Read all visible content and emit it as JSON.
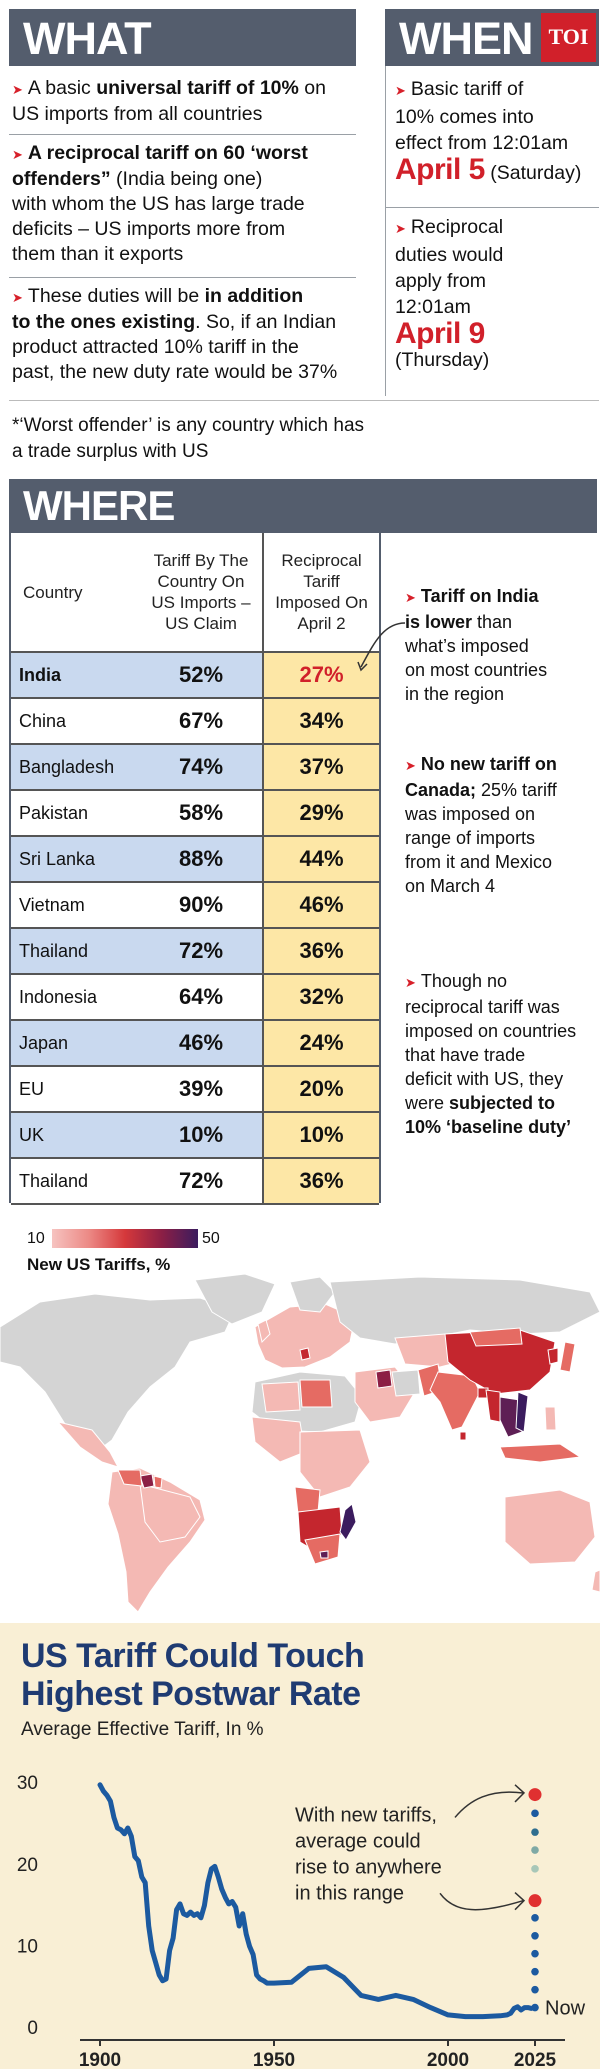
{
  "what": {
    "heading": "WHAT",
    "items": [
      {
        "lines": [
          [
            {
              "t": "A basic "
            },
            {
              "t": "universal tariff of 10%",
              "b": true
            },
            {
              "t": " on"
            }
          ],
          [
            {
              "t": "US imports from all countries"
            }
          ]
        ]
      },
      {
        "lines": [
          [
            {
              "t": "A reciprocal tariff on 60 ‘worst",
              "b": true
            }
          ],
          [
            {
              "t": "offenders”",
              "b": true
            },
            {
              "t": " (India being one)"
            }
          ],
          [
            {
              "t": "with whom the US has large trade"
            }
          ],
          [
            {
              "t": "deficits – US imports more from"
            }
          ],
          [
            {
              "t": "them than it exports"
            }
          ]
        ]
      },
      {
        "lines": [
          [
            {
              "t": "These duties will be "
            },
            {
              "t": "in addition",
              "b": true
            }
          ],
          [
            {
              "t": "to the ones existing",
              "b": true
            },
            {
              "t": ". So, if an Indian"
            }
          ],
          [
            {
              "t": "product attracted 10% tariff in the"
            }
          ],
          [
            {
              "t": "past, the new duty rate would be 37%"
            }
          ]
        ]
      }
    ],
    "footnote_lines": [
      "*‘Worst offender’ is any country which has",
      "a trade surplus with US"
    ]
  },
  "when": {
    "heading": "WHEN",
    "badge": "TOI",
    "item1_lines": [
      "Basic tariff of",
      "10% comes into",
      "effect from 12:01am"
    ],
    "item1_date": "April 5",
    "item1_day": "(Saturday)",
    "item2_lines": [
      "Reciprocal",
      "duties would",
      "apply from",
      "12:01am"
    ],
    "item2_date": "April 9",
    "item2_day": "(Thursday)"
  },
  "where": {
    "heading": "WHERE",
    "columns": [
      "Country",
      "Tariff By The Country On US Imports – US Claim",
      "Reciprocal Tariff Imposed On April 2"
    ],
    "rows": [
      {
        "country": "India",
        "claim": "52%",
        "reciprocal": "27%",
        "highlight": true
      },
      {
        "country": "China",
        "claim": "67%",
        "reciprocal": "34%"
      },
      {
        "country": "Bangladesh",
        "claim": "74%",
        "reciprocal": "37%"
      },
      {
        "country": "Pakistan",
        "claim": "58%",
        "reciprocal": "29%"
      },
      {
        "country": "Sri Lanka",
        "claim": "88%",
        "reciprocal": "44%"
      },
      {
        "country": "Vietnam",
        "claim": "90%",
        "reciprocal": "46%"
      },
      {
        "country": "Thailand",
        "claim": "72%",
        "reciprocal": "36%"
      },
      {
        "country": "Indonesia",
        "claim": "64%",
        "reciprocal": "32%"
      },
      {
        "country": "Japan",
        "claim": "46%",
        "reciprocal": "24%"
      },
      {
        "country": "EU",
        "claim": "39%",
        "reciprocal": "20%"
      },
      {
        "country": "UK",
        "claim": "10%",
        "reciprocal": "10%"
      },
      {
        "country": "Thailand",
        "claim": "72%",
        "reciprocal": "36%"
      }
    ],
    "notes": [
      {
        "lines": [
          [
            {
              "t": "Tariff on India",
              "b": true
            }
          ],
          [
            {
              "t": "is lower",
              "b": true
            },
            {
              "t": " than"
            }
          ],
          [
            {
              "t": "what’s imposed"
            }
          ],
          [
            {
              "t": "on most countries"
            }
          ],
          [
            {
              "t": "in the region"
            }
          ]
        ]
      },
      {
        "lines": [
          [
            {
              "t": "No new tariff on",
              "b": true
            }
          ],
          [
            {
              "t": "Canada;",
              "b": true
            },
            {
              "t": " 25% tariff"
            }
          ],
          [
            {
              "t": "was imposed on"
            }
          ],
          [
            {
              "t": "range of imports"
            }
          ],
          [
            {
              "t": "from it and Mexico"
            }
          ],
          [
            {
              "t": "on March 4"
            }
          ]
        ]
      },
      {
        "lines": [
          [
            {
              "t": "Though no"
            }
          ],
          [
            {
              "t": "reciprocal tariff was"
            }
          ],
          [
            {
              "t": "imposed on countries"
            }
          ],
          [
            {
              "t": "that have trade"
            }
          ],
          [
            {
              "t": "deficit with US, they"
            }
          ],
          [
            {
              "t": "were "
            },
            {
              "t": "subjected to",
              "b": true
            }
          ],
          [
            {
              "t": "10% ‘baseline duty’",
              "b": true
            }
          ]
        ]
      }
    ]
  },
  "map": {
    "legend_min": "10",
    "legend_max": "50",
    "legend_title": "New US Tariffs, %",
    "colors": {
      "land": "#d4d4d4",
      "light": "#f4b9b4",
      "mid": "#e56b63",
      "high": "#c4262e",
      "dark": "#5e1f55"
    }
  },
  "chart_data": {
    "type": "line",
    "title_lines": [
      "US Tariff Could Touch",
      "Highest Postwar Rate"
    ],
    "subtitle": "Average Effective Tariff, In %",
    "yticks": [
      0,
      10,
      20,
      30
    ],
    "xticks": [
      1900,
      1950,
      2000,
      2025
    ],
    "xlim": [
      1900,
      2025
    ],
    "ylim": [
      0,
      31
    ],
    "line_color": "#1c5aa0",
    "series": [
      {
        "x": [
          1900,
          1901,
          1902,
          1903,
          1904,
          1905,
          1906,
          1907,
          1908,
          1909,
          1910,
          1911,
          1912,
          1913,
          1914,
          1915,
          1916,
          1917,
          1918,
          1919,
          1920,
          1921,
          1922,
          1923,
          1924,
          1925,
          1926,
          1927,
          1928,
          1929,
          1930,
          1931,
          1932,
          1933,
          1934,
          1935,
          1936,
          1937,
          1938,
          1939,
          1940,
          1941,
          1942,
          1943,
          1944,
          1945,
          1946,
          1947,
          1948,
          1949,
          1950,
          1955,
          1960,
          1965,
          1970,
          1975,
          1980,
          1985,
          1990,
          1995,
          2000,
          2005,
          2010,
          2015,
          2017,
          2018,
          2019,
          2020,
          2021,
          2022,
          2023,
          2024
        ],
        "y": [
          29.8,
          29.0,
          28.5,
          27.8,
          25.8,
          24.5,
          24.3,
          23.8,
          24.5,
          23.5,
          21.0,
          20.5,
          18.5,
          17.8,
          12.5,
          9.5,
          8.0,
          6.5,
          5.8,
          6.0,
          9.5,
          11.0,
          14.5,
          15.2,
          14.0,
          13.8,
          14.2,
          13.8,
          14.0,
          13.5,
          15.0,
          17.8,
          19.5,
          19.8,
          18.5,
          17.0,
          16.0,
          15.2,
          15.5,
          14.8,
          12.5,
          14.0,
          11.5,
          10.0,
          9.0,
          6.5,
          6.0,
          5.8,
          5.5,
          5.5,
          5.5,
          5.6,
          7.3,
          7.5,
          6.2,
          4.0,
          3.5,
          4.0,
          3.5,
          2.5,
          1.6,
          1.4,
          1.4,
          1.5,
          1.6,
          1.8,
          2.4,
          2.6,
          2.2,
          2.5,
          2.5,
          2.4
        ]
      }
    ],
    "projection_dots": [
      2.5,
      4.7,
      6.9,
      9.1,
      11.3,
      13.5,
      15.6,
      19.5,
      21.8,
      24.0,
      26.3,
      28.6
    ],
    "projection_colors": [
      "#1c5aa0",
      "#1c5aa0",
      "#1c5aa0",
      "#1c5aa0",
      "#1c5aa0",
      "#1c5aa0",
      "#e03030",
      "#a8c7b8",
      "#7fa9a5",
      "#2f6e8f",
      "#1c5aa0",
      "#e03030"
    ],
    "annotation_lines": [
      "With new tariffs,",
      "average could",
      "rise to anywhere",
      "in this range"
    ],
    "now_label": "Now"
  }
}
